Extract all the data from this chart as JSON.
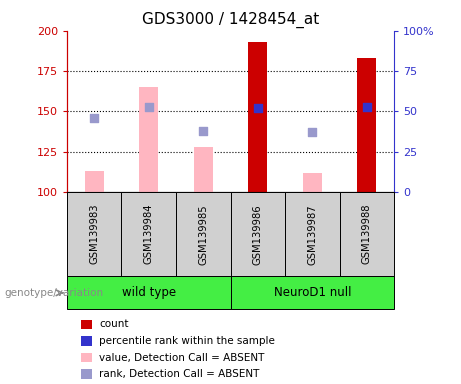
{
  "title": "GDS3000 / 1428454_at",
  "samples": [
    "GSM139983",
    "GSM139984",
    "GSM139985",
    "GSM139986",
    "GSM139987",
    "GSM139988"
  ],
  "group_labels": [
    "wild type",
    "NeuroD1 null"
  ],
  "bar_bottom": 100,
  "ylim_left": [
    100,
    200
  ],
  "ylim_right": [
    0,
    100
  ],
  "yticks_left": [
    100,
    125,
    150,
    175,
    200
  ],
  "yticks_right": [
    0,
    25,
    50,
    75,
    100
  ],
  "ytick_labels_left": [
    "100",
    "125",
    "150",
    "175",
    "200"
  ],
  "ytick_labels_right": [
    "0",
    "25",
    "50",
    "75",
    "100%"
  ],
  "gridlines": [
    125,
    150,
    175
  ],
  "absent_bar_color": "#ffb6c1",
  "present_bar_color": "#cc0000",
  "rank_dot_color_present": "#3333cc",
  "rank_dot_color_absent": "#9999cc",
  "sample_values": [
    113,
    165,
    128,
    193,
    112,
    183
  ],
  "sample_present": [
    false,
    false,
    false,
    true,
    false,
    true
  ],
  "sample_ranks": [
    146,
    153,
    138,
    152,
    137,
    153
  ],
  "x_positions": [
    1,
    2,
    3,
    4,
    5,
    6
  ],
  "bar_width": 0.35,
  "plot_bg": "#ffffff",
  "left_axis_color": "#cc0000",
  "right_axis_color": "#3333cc",
  "tick_fontsize": 8,
  "title_fontsize": 11,
  "genotype_label": "genotype/variation",
  "sample_box_color": "#d0d0d0",
  "group_box_color": "#44ee44",
  "legend_items": [
    {
      "label": "count",
      "color": "#cc0000"
    },
    {
      "label": "percentile rank within the sample",
      "color": "#3333cc"
    },
    {
      "label": "value, Detection Call = ABSENT",
      "color": "#ffb6c1"
    },
    {
      "label": "rank, Detection Call = ABSENT",
      "color": "#9999cc"
    }
  ]
}
